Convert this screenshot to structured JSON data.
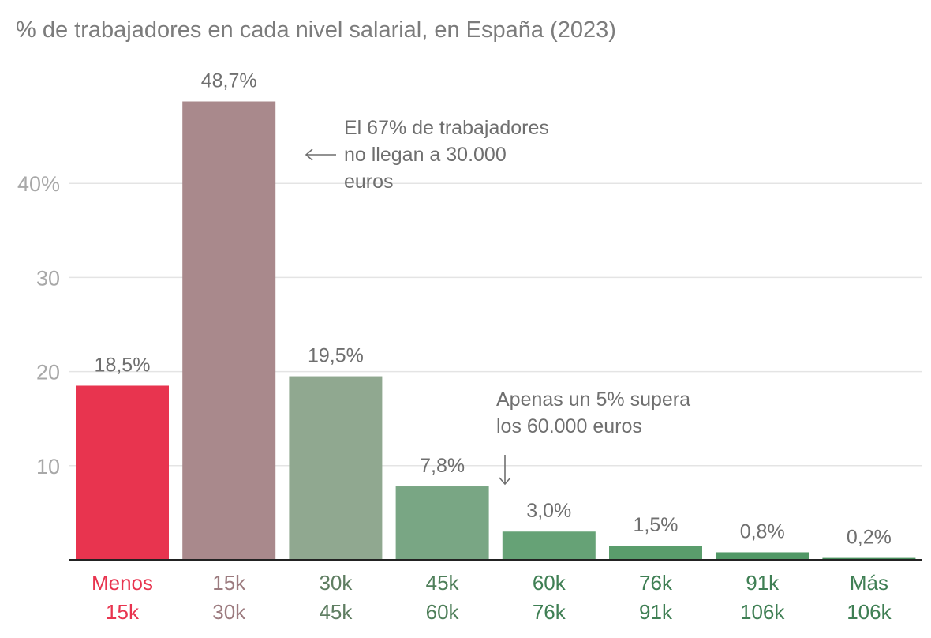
{
  "chart_data": {
    "type": "bar",
    "title": "% de trabajadores en cada nivel salarial, en España (2023)",
    "xlabel": "",
    "ylabel": "",
    "ylim": [
      0,
      50
    ],
    "yticks": [
      {
        "value": 10,
        "label": "10"
      },
      {
        "value": 20,
        "label": "20"
      },
      {
        "value": 30,
        "label": "30"
      },
      {
        "value": 40,
        "label": "40%"
      }
    ],
    "categories": [
      {
        "line1": "Menos",
        "line2": "15k"
      },
      {
        "line1": "15k",
        "line2": "30k"
      },
      {
        "line1": "30k",
        "line2": "45k"
      },
      {
        "line1": "45k",
        "line2": "60k"
      },
      {
        "line1": "60k",
        "line2": "76k"
      },
      {
        "line1": "76k",
        "line2": "91k"
      },
      {
        "line1": "91k",
        "line2": "106k"
      },
      {
        "line1": "Más",
        "line2": "106k"
      }
    ],
    "values": [
      18.5,
      48.7,
      19.5,
      7.8,
      3.0,
      1.5,
      0.8,
      0.2
    ],
    "value_labels": [
      "18,5%",
      "48,7%",
      "19,5%",
      "7,8%",
      "3,0%",
      "1,5%",
      "0,8%",
      "0,2%"
    ],
    "bar_colors": [
      "#e8344f",
      "#a9898c",
      "#90a890",
      "#79a684",
      "#66a276",
      "#5a9d6c",
      "#519866",
      "#4a8f5e"
    ],
    "label_colors": [
      "#e8344f",
      "#9c7b7f",
      "#5f7e62",
      "#4f7f5a",
      "#3f7f54",
      "#3f7f54",
      "#3f7f54",
      "#3f7f54"
    ],
    "annotations": [
      {
        "lines": [
          "El 67% de trabajadores",
          "no llegan a 30.000",
          "euros"
        ],
        "arrow": "left",
        "bar_index": 1
      },
      {
        "lines": [
          "Apenas un 5% supera",
          "los 60.000 euros"
        ],
        "arrow": "down",
        "bar_index": 4
      }
    ]
  }
}
